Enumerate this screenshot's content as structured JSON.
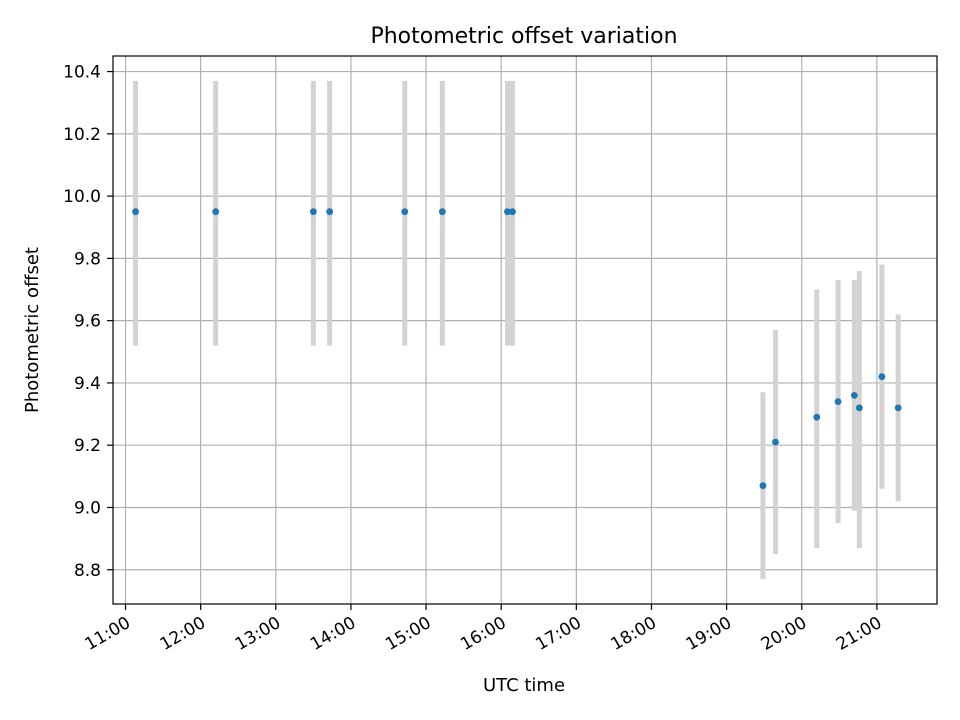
{
  "chart_data": {
    "type": "scatter",
    "title": "Photometric offset variation",
    "xlabel": "UTC time",
    "ylabel": "Photometric offset",
    "xlim": [
      "10:50",
      "21:48"
    ],
    "ylim": [
      8.69,
      10.45
    ],
    "x_ticks": [
      "11:00",
      "12:00",
      "13:00",
      "14:00",
      "15:00",
      "16:00",
      "17:00",
      "18:00",
      "19:00",
      "20:00",
      "21:00"
    ],
    "y_ticks": [
      "8.8",
      "9.0",
      "9.2",
      "9.4",
      "9.6",
      "9.8",
      "10.0",
      "10.2",
      "10.4"
    ],
    "grid": true,
    "point_color": "#1f77b4",
    "errorbar_color": "#d3d3d3",
    "points": [
      {
        "time": "11:08",
        "value": 9.95,
        "low": 9.52,
        "high": 10.37
      },
      {
        "time": "12:12",
        "value": 9.95,
        "low": 9.52,
        "high": 10.37
      },
      {
        "time": "13:30",
        "value": 9.95,
        "low": 9.52,
        "high": 10.37
      },
      {
        "time": "13:43",
        "value": 9.95,
        "low": 9.52,
        "high": 10.37
      },
      {
        "time": "14:43",
        "value": 9.95,
        "low": 9.52,
        "high": 10.37
      },
      {
        "time": "15:13",
        "value": 9.95,
        "low": 9.52,
        "high": 10.37
      },
      {
        "time": "16:05",
        "value": 9.95,
        "low": 9.52,
        "high": 10.37
      },
      {
        "time": "16:09",
        "value": 9.95,
        "low": 9.52,
        "high": 10.37
      },
      {
        "time": "19:29",
        "value": 9.07,
        "low": 8.77,
        "high": 9.37
      },
      {
        "time": "19:39",
        "value": 9.21,
        "low": 8.85,
        "high": 9.57
      },
      {
        "time": "20:12",
        "value": 9.29,
        "low": 8.87,
        "high": 9.7
      },
      {
        "time": "20:29",
        "value": 9.34,
        "low": 8.95,
        "high": 9.73
      },
      {
        "time": "20:42",
        "value": 9.36,
        "low": 8.99,
        "high": 9.73
      },
      {
        "time": "20:46",
        "value": 9.32,
        "low": 8.87,
        "high": 9.76
      },
      {
        "time": "21:04",
        "value": 9.42,
        "low": 9.06,
        "high": 9.78
      },
      {
        "time": "21:17",
        "value": 9.32,
        "low": 9.02,
        "high": 9.62
      }
    ]
  }
}
